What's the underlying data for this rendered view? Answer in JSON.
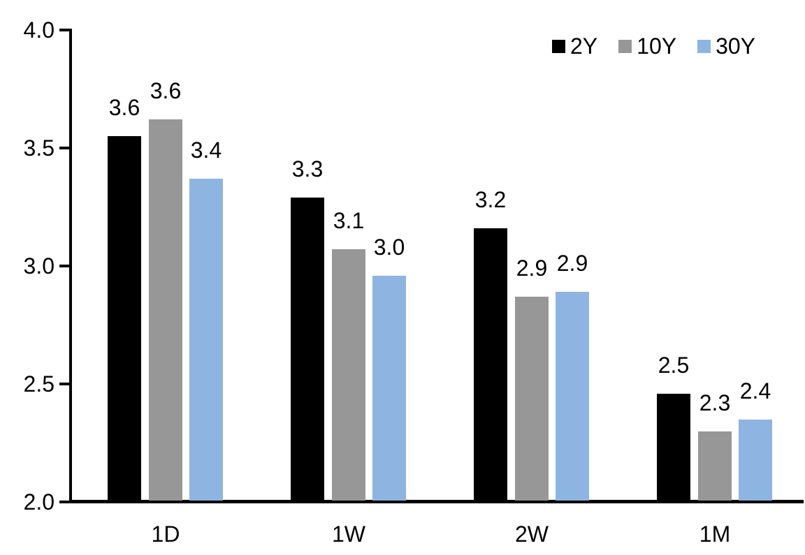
{
  "chart_data": {
    "type": "bar",
    "title": "",
    "xlabel": "",
    "ylabel": "",
    "categories": [
      "1D",
      "1W",
      "2W",
      "1M"
    ],
    "series": [
      {
        "name": "2Y",
        "color": "#000000",
        "values": [
          3.6,
          3.3,
          3.2,
          2.5
        ],
        "labels": [
          "3.6",
          "3.3",
          "3.2",
          "2.5"
        ],
        "bar_tops": [
          3.55,
          3.29,
          3.16,
          2.46
        ]
      },
      {
        "name": "10Y",
        "color": "#979797",
        "values": [
          3.6,
          3.1,
          2.9,
          2.3
        ],
        "labels": [
          "3.6",
          "3.1",
          "2.9",
          "2.3"
        ],
        "bar_tops": [
          3.62,
          3.07,
          2.87,
          2.3
        ]
      },
      {
        "name": "30Y",
        "color": "#8EB4E2",
        "values": [
          3.4,
          3.0,
          2.9,
          2.4
        ],
        "labels": [
          "3.4",
          "3.0",
          "2.9",
          "2.4"
        ],
        "bar_tops": [
          3.37,
          2.96,
          2.89,
          2.35
        ]
      }
    ],
    "ylim": [
      2.0,
      4.0
    ],
    "yticks": [
      "4.0",
      "3.5",
      "3.0",
      "2.5",
      "2.0"
    ],
    "ytick_values": [
      4.0,
      3.5,
      3.0,
      2.5,
      2.0
    ],
    "grid": false,
    "legend_position": "top-right",
    "axis_color": "#000000",
    "label_color": "#000000",
    "background_color": "#ffffff"
  }
}
